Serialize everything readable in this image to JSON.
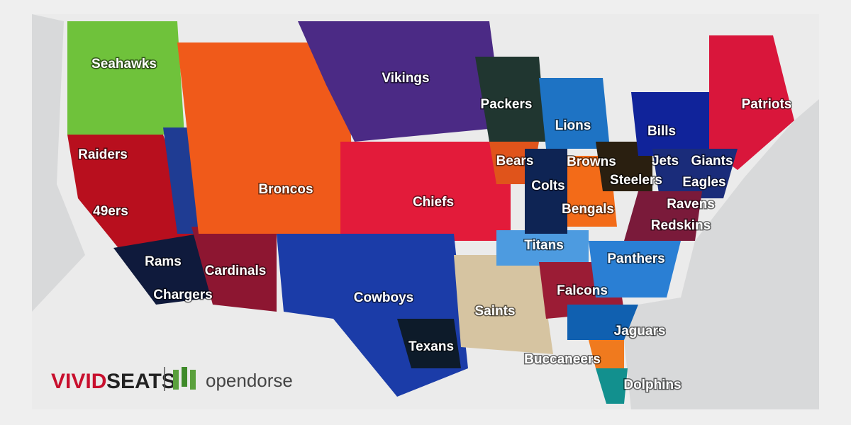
{
  "labels": [
    "Seahawks",
    "Vikings",
    "Packers",
    "Patriots",
    "Lions",
    "Bills",
    "Raiders",
    "Bears",
    "Browns",
    "Jets",
    "Giants",
    "Steelers",
    "Eagles",
    "Broncos",
    "Colts",
    "Chiefs",
    "Ravens",
    "49ers",
    "Bengals",
    "Redskins",
    "Titans",
    "Rams",
    "Panthers",
    "Cardinals",
    "Falcons",
    "Chargers",
    "Cowboys",
    "Saints",
    "Jaguars",
    "Texans",
    "Buccaneers",
    "Dolphins"
  ],
  "brand": {
    "vivid": "VIVID",
    "seats": "SEATS",
    "partner": "opendorse"
  }
}
